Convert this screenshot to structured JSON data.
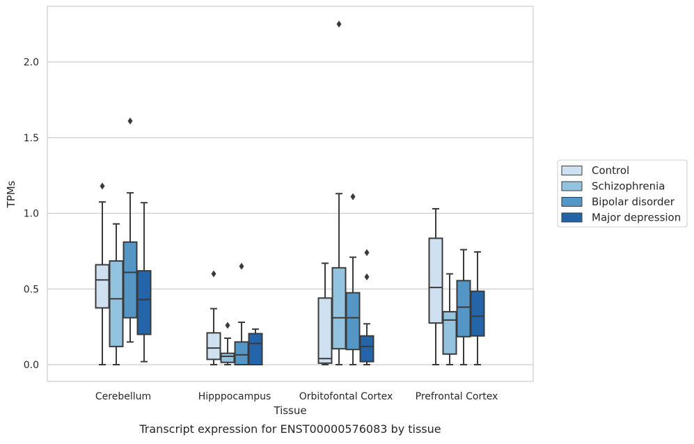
{
  "chart_data": {
    "type": "box",
    "xlabel": "Tissue",
    "ylabel": "TPMs",
    "caption": "Transcript expression for ENST00000576083 by tissue",
    "ylim": [
      -0.11,
      2.37
    ],
    "yticks": [
      "0.0",
      "0.5",
      "1.0",
      "1.5",
      "2.0"
    ],
    "ytick_values": [
      0.0,
      0.5,
      1.0,
      1.5,
      2.0
    ],
    "grid": "horizontal",
    "legend_position": "right",
    "categories": [
      "Cerebellum",
      "Hipppocampus",
      "Orbitofontal Cortex",
      "Prefrontal Cortex"
    ],
    "series": [
      {
        "name": "Control",
        "color": "#cfe0f1",
        "boxes": [
          {
            "whislo": 0.0,
            "q1": 0.375,
            "med": 0.56,
            "q3": 0.66,
            "whishi": 1.075,
            "fliers": [
              1.18
            ]
          },
          {
            "whislo": 0.0,
            "q1": 0.035,
            "med": 0.11,
            "q3": 0.21,
            "whishi": 0.37,
            "fliers": [
              0.6
            ]
          },
          {
            "whislo": 0.0,
            "q1": 0.01,
            "med": 0.04,
            "q3": 0.44,
            "whishi": 0.67,
            "fliers": []
          },
          {
            "whislo": 0.0,
            "q1": 0.275,
            "med": 0.51,
            "q3": 0.835,
            "whishi": 1.03,
            "fliers": []
          }
        ]
      },
      {
        "name": "Schizophrenia",
        "color": "#93c3df",
        "boxes": [
          {
            "whislo": 0.0,
            "q1": 0.12,
            "med": 0.435,
            "q3": 0.685,
            "whishi": 0.93,
            "fliers": []
          },
          {
            "whislo": 0.0,
            "q1": 0.015,
            "med": 0.055,
            "q3": 0.075,
            "whishi": 0.175,
            "fliers": [
              0.26
            ]
          },
          {
            "whislo": 0.0,
            "q1": 0.105,
            "med": 0.31,
            "q3": 0.64,
            "whishi": 1.13,
            "fliers": [
              2.25
            ]
          },
          {
            "whislo": 0.0,
            "q1": 0.07,
            "med": 0.295,
            "q3": 0.35,
            "whishi": 0.6,
            "fliers": []
          }
        ]
      },
      {
        "name": "Bipolar disorder",
        "color": "#5497c6",
        "boxes": [
          {
            "whislo": 0.15,
            "q1": 0.31,
            "med": 0.61,
            "q3": 0.81,
            "whishi": 1.135,
            "fliers": [
              1.61
            ]
          },
          {
            "whislo": 0.0,
            "q1": 0.0,
            "med": 0.065,
            "q3": 0.15,
            "whishi": 0.28,
            "fliers": [
              0.65
            ]
          },
          {
            "whislo": 0.0,
            "q1": 0.1,
            "med": 0.31,
            "q3": 0.475,
            "whishi": 0.71,
            "fliers": [
              1.11
            ]
          },
          {
            "whislo": 0.0,
            "q1": 0.185,
            "med": 0.38,
            "q3": 0.555,
            "whishi": 0.76,
            "fliers": []
          }
        ]
      },
      {
        "name": "Major depression",
        "color": "#2464a8",
        "boxes": [
          {
            "whislo": 0.02,
            "q1": 0.2,
            "med": 0.43,
            "q3": 0.62,
            "whishi": 1.07,
            "fliers": []
          },
          {
            "whislo": 0.0,
            "q1": 0.0,
            "med": 0.14,
            "q3": 0.205,
            "whishi": 0.235,
            "fliers": []
          },
          {
            "whislo": 0.0,
            "q1": 0.02,
            "med": 0.12,
            "q3": 0.19,
            "whishi": 0.27,
            "fliers": [
              0.58,
              0.74
            ]
          },
          {
            "whislo": 0.0,
            "q1": 0.19,
            "med": 0.32,
            "q3": 0.485,
            "whishi": 0.745,
            "fliers": []
          }
        ]
      }
    ]
  }
}
